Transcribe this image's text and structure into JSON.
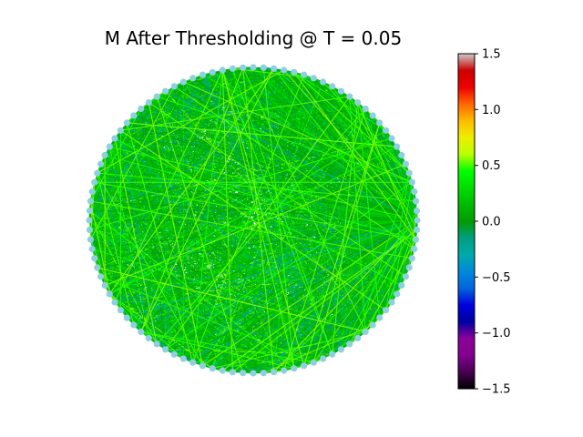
{
  "chart_data": {
    "type": "network",
    "title": "M After Thresholding @ T = 0.05",
    "node_count": 100,
    "layout": "circular",
    "node_color": "#8fd0e0",
    "edge_value_range": [
      -0.3,
      0.6
    ],
    "hub_node_index": 0,
    "colorbar": {
      "colormap": "nipy_spectral",
      "vmin": -1.5,
      "vmax": 1.5,
      "ticks": [
        1.5,
        1.0,
        0.5,
        0.0,
        -0.5,
        -1.0,
        -1.5
      ],
      "tick_labels": [
        "1.5",
        "1.0",
        "0.5",
        "0.0",
        "−0.5",
        "−1.0",
        "−1.5"
      ]
    }
  }
}
